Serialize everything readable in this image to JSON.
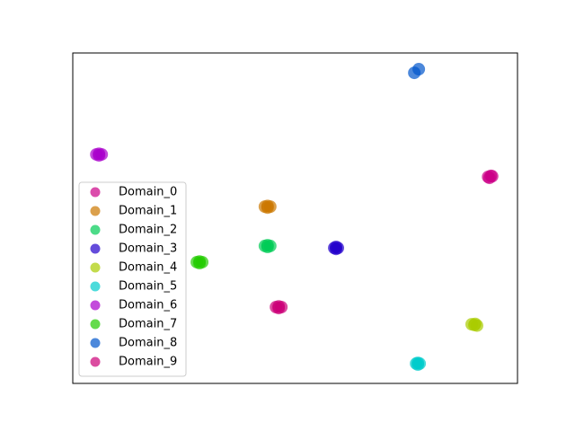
{
  "chart_data": {
    "type": "scatter",
    "xlim": [
      0,
      1
    ],
    "ylim": [
      0,
      1
    ],
    "legend": "lower left",
    "series": [
      {
        "name": "Domain_0",
        "color": "#cc0088",
        "x": [
          0.934,
          0.94,
          0.937,
          0.943
        ],
        "values": [
          0.625,
          0.628,
          0.622,
          0.627
        ]
      },
      {
        "name": "Domain_1",
        "color": "#cc7700",
        "x": [
          0.432,
          0.438,
          0.444,
          0.438
        ],
        "values": [
          0.535,
          0.537,
          0.535,
          0.532
        ]
      },
      {
        "name": "Domain_2",
        "color": "#00cc55",
        "x": [
          0.432,
          0.438,
          0.444,
          0.438
        ],
        "values": [
          0.416,
          0.418,
          0.416,
          0.413
        ]
      },
      {
        "name": "Domain_3",
        "color": "#2200cc",
        "x": [
          0.588,
          0.592,
          0.596,
          0.592
        ],
        "values": [
          0.41,
          0.413,
          0.41,
          0.407
        ]
      },
      {
        "name": "Domain_4",
        "color": "#aacc00",
        "x": [
          0.897,
          0.903,
          0.909,
          0.905
        ],
        "values": [
          0.179,
          0.177,
          0.175,
          0.18
        ]
      },
      {
        "name": "Domain_5",
        "color": "#00cccc",
        "x": [
          0.772,
          0.776,
          0.78,
          0.776
        ],
        "values": [
          0.06,
          0.062,
          0.06,
          0.057
        ]
      },
      {
        "name": "Domain_6",
        "color": "#aa00cc",
        "x": [
          0.053,
          0.059,
          0.065,
          0.059
        ],
        "values": [
          0.693,
          0.695,
          0.693,
          0.69
        ]
      },
      {
        "name": "Domain_7",
        "color": "#22cc00",
        "x": [
          0.279,
          0.285,
          0.291,
          0.285
        ],
        "values": [
          0.367,
          0.369,
          0.367,
          0.364
        ]
      },
      {
        "name": "Domain_8",
        "color": "#0055cc",
        "x": [
          0.768,
          0.778
        ],
        "values": [
          0.94,
          0.951
        ]
      },
      {
        "name": "Domain_9",
        "color": "#cc0077",
        "x": [
          0.457,
          0.463,
          0.469,
          0.463
        ],
        "values": [
          0.231,
          0.233,
          0.231,
          0.228
        ]
      }
    ]
  }
}
